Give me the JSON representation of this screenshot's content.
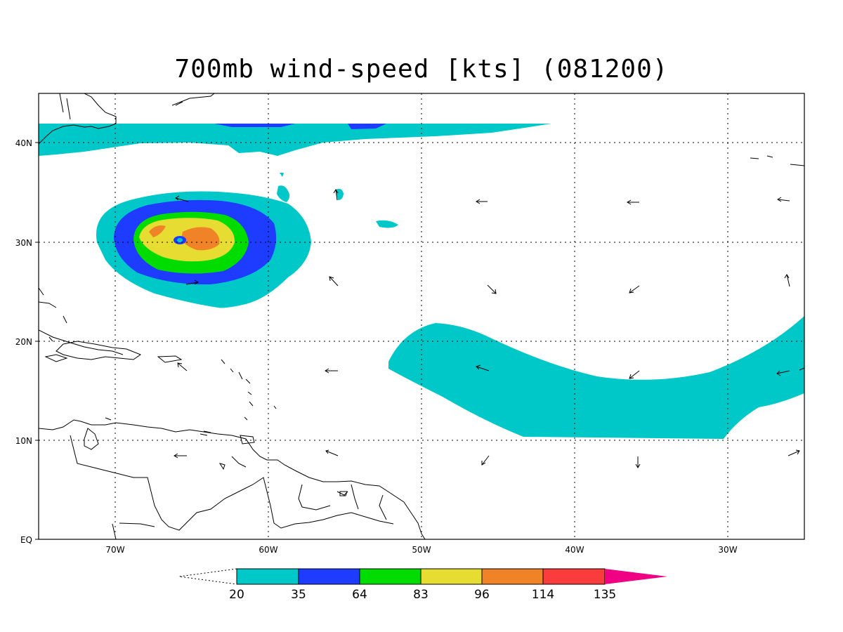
{
  "title": "700mb wind-speed [kts] (081200)",
  "axes": {
    "lat_labels": [
      "40N",
      "30N",
      "20N",
      "10N",
      "EQ"
    ],
    "lon_labels": [
      "70W",
      "60W",
      "50W",
      "40W",
      "30W"
    ]
  },
  "colorbar": {
    "labels": [
      "20",
      "35",
      "64",
      "83",
      "96",
      "114",
      "135"
    ],
    "colors": [
      "#00c8c8",
      "#1e3cff",
      "#00dc00",
      "#e6dc32",
      "#f08228",
      "#fa3c3c",
      "#f00082"
    ]
  },
  "map": {
    "projection": "lat-lon",
    "lon_range": [
      "75W",
      "25W"
    ],
    "lat_range": [
      "0N",
      "45N"
    ],
    "grid": "dotted",
    "storm_center": {
      "lon": "65.8W",
      "lat": "30.2N"
    }
  },
  "chart_data": {
    "type": "heatmap",
    "variable": "700mb wind-speed",
    "units": "kts",
    "contour_levels": [
      20,
      35,
      64,
      83,
      96,
      114,
      135
    ],
    "features": [
      {
        "name": "hurricane",
        "center": [
          "65.8W",
          "30.2N"
        ],
        "max_band": "96-114"
      },
      {
        "name": "easterly-jet band",
        "lon": [
          "52W",
          "25W"
        ],
        "lat": [
          "10N",
          "22N"
        ],
        "band": "20-35"
      },
      {
        "name": "northern jet",
        "lon": [
          "75W",
          "42W"
        ],
        "lat": [
          "38N",
          "42N"
        ],
        "max_band": "35-64"
      }
    ]
  }
}
